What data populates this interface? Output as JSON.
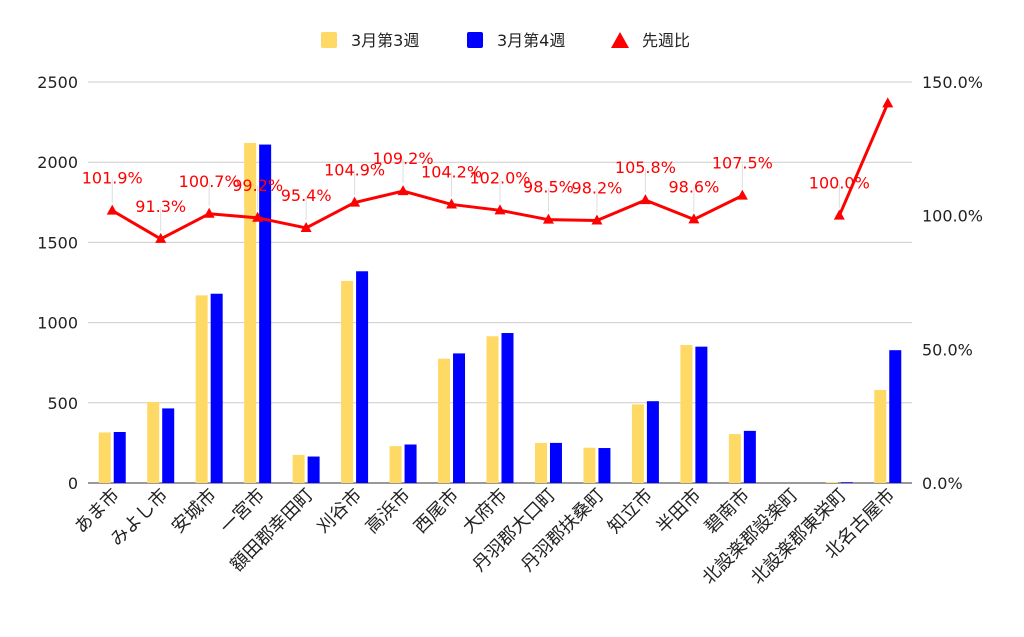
{
  "chart_data": {
    "type": "bar",
    "title": "",
    "categories": [
      "あま市",
      "みよし市",
      "安城市",
      "一宮市",
      "額田郡幸田町",
      "刈谷市",
      "高浜市",
      "西尾市",
      "大府市",
      "丹羽郡大口町",
      "丹羽郡扶桑町",
      "知立市",
      "半田市",
      "碧南市",
      "北設楽郡設楽町",
      "北設楽郡東栄町",
      "北名古屋市"
    ],
    "series": [
      {
        "name": "3月第3週",
        "type": "bar",
        "axis": "left",
        "color": "#FFD966",
        "values": [
          315,
          505,
          1170,
          2120,
          175,
          1260,
          230,
          775,
          915,
          250,
          220,
          490,
          860,
          305,
          0,
          5,
          580
        ]
      },
      {
        "name": "3月第4週",
        "type": "bar",
        "axis": "left",
        "color": "#0000FF",
        "values": [
          318,
          465,
          1180,
          2110,
          165,
          1320,
          240,
          808,
          935,
          250,
          218,
          510,
          850,
          325,
          0,
          5,
          828
        ]
      },
      {
        "name": "先週比",
        "type": "line",
        "axis": "right",
        "color": "#FF0000",
        "marker": "triangle",
        "values": [
          101.9,
          91.3,
          100.7,
          99.2,
          95.4,
          104.9,
          109.2,
          104.2,
          102.0,
          98.5,
          98.2,
          105.8,
          98.6,
          107.5,
          null,
          100.0,
          142.0
        ],
        "data_labels": [
          "101.9%",
          "91.3%",
          "100.7%",
          "99.2%",
          "95.4%",
          "104.9%",
          "109.2%",
          "104.2%",
          "102.0%",
          "98.5%",
          "98.2%",
          "105.8%",
          "98.6%",
          "107.5%",
          "",
          "100.0%",
          ""
        ]
      }
    ],
    "y_left": {
      "ylim": [
        0,
        2500
      ],
      "ticks": [
        "0",
        "500",
        "1000",
        "1500",
        "2000",
        "2500"
      ]
    },
    "y_right": {
      "ylim": [
        0,
        150
      ],
      "ticks": [
        "0.0%",
        "50.0%",
        "100.0%",
        "150.0%"
      ]
    },
    "grid": true,
    "legend_position": "top"
  }
}
